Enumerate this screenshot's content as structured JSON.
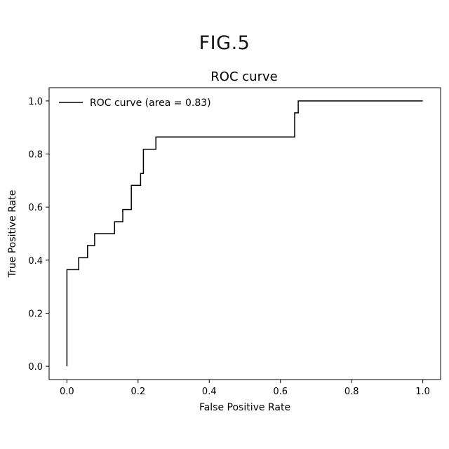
{
  "figure_label": "FIG.5",
  "chart_data": {
    "type": "line",
    "title": "ROC curve",
    "xlabel": "False Positive Rate",
    "ylabel": "True Positive Rate",
    "xlim": [
      -0.05,
      1.05
    ],
    "ylim": [
      -0.05,
      1.05
    ],
    "x_ticks": [
      0.0,
      0.2,
      0.4,
      0.6,
      0.8,
      1.0
    ],
    "y_ticks": [
      0.0,
      0.2,
      0.4,
      0.6,
      0.8,
      1.0
    ],
    "x_tick_labels": [
      "0.0",
      "0.2",
      "0.4",
      "0.6",
      "0.8",
      "1.0"
    ],
    "y_tick_labels": [
      "0.0",
      "0.2",
      "0.4",
      "0.6",
      "0.8",
      "1.0"
    ],
    "grid": false,
    "legend_position": "top-left",
    "series": [
      {
        "name": "ROC curve (area = 0.83)",
        "color": "#000000",
        "x": [
          0.0,
          0.0,
          0.0,
          0.0,
          0.033,
          0.033,
          0.058,
          0.058,
          0.078,
          0.078,
          0.134,
          0.134,
          0.157,
          0.157,
          0.181,
          0.181,
          0.207,
          0.207,
          0.215,
          0.215,
          0.25,
          0.25,
          0.64,
          0.64,
          0.65,
          0.65,
          1.0
        ],
        "y": [
          0.0,
          0.2,
          0.2,
          0.364,
          0.364,
          0.409,
          0.409,
          0.455,
          0.455,
          0.5,
          0.5,
          0.545,
          0.545,
          0.591,
          0.591,
          0.682,
          0.682,
          0.727,
          0.727,
          0.818,
          0.818,
          0.864,
          0.864,
          0.955,
          0.955,
          1.0,
          1.0
        ]
      }
    ]
  }
}
